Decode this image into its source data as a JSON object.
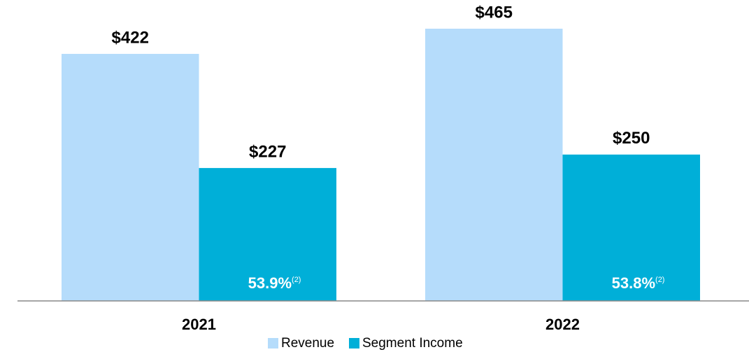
{
  "chart_data": {
    "type": "bar",
    "categories": [
      "2021",
      "2022"
    ],
    "series": [
      {
        "name": "Revenue",
        "color": "#b5dcfb",
        "values": [
          422,
          465
        ],
        "value_labels": [
          "$422",
          "$465"
        ]
      },
      {
        "name": "Segment Income",
        "color": "#00afd8",
        "values": [
          227,
          250
        ],
        "value_labels": [
          "$227",
          "$250"
        ]
      }
    ],
    "annotations": [
      {
        "text": "53.9%",
        "superscript": "(2)"
      },
      {
        "text": "53.8%",
        "superscript": "(2)"
      }
    ],
    "legend": "bottom"
  }
}
